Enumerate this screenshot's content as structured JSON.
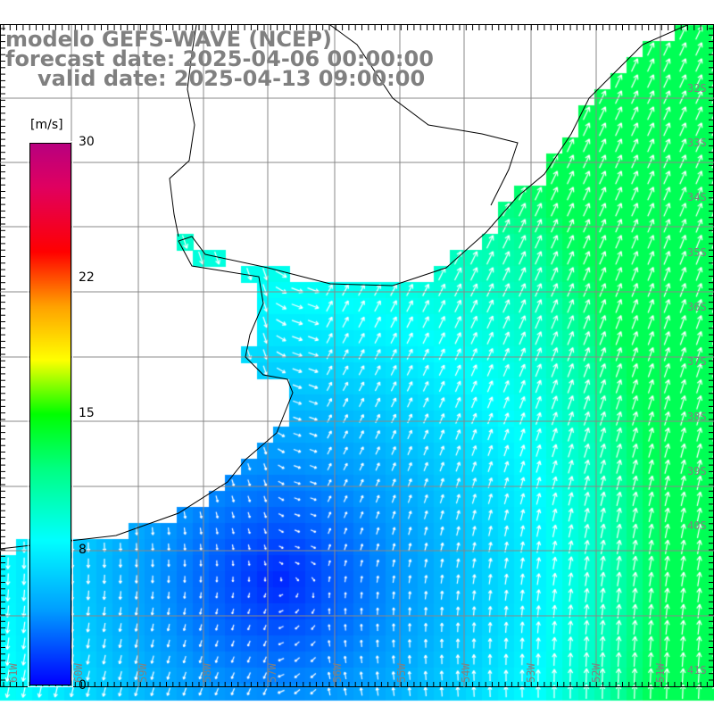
{
  "header": {
    "model": "modelo GEFS-WAVE (NCEP)",
    "forecast": "forecast date: 2025-04-06 00:00:00",
    "valid": "valid date: 2025-04-13 09:00:00"
  },
  "colorbar": {
    "unit": "[m/s]",
    "ticks": [
      "30",
      "22",
      "15",
      "8",
      "0"
    ],
    "colors": {
      "0": "#0000ff",
      "8": "#00ffff",
      "15": "#00ff00",
      "22": "#ff8000",
      "30": "#b8007f"
    }
  },
  "axes": {
    "lon_labels": [
      "61W",
      "60W",
      "59W",
      "58W",
      "57W",
      "56W",
      "55W",
      "54W",
      "53W",
      "52W",
      "51W"
    ],
    "lat_labels": [
      "32S",
      "33S",
      "34S",
      "35S",
      "36S",
      "37S",
      "38S",
      "39S",
      "40S",
      "41S"
    ]
  }
}
